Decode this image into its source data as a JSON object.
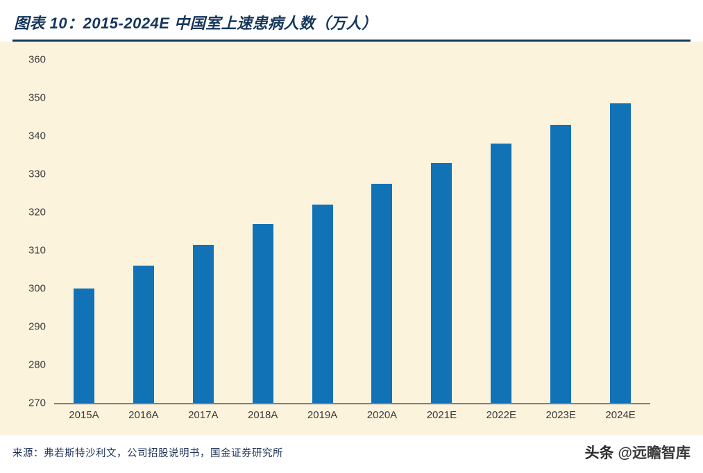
{
  "header": {
    "title": "图表 10：2015-2024E 中国室上速患病人数（万人）"
  },
  "chart_data": {
    "type": "bar",
    "title": "图表 10：2015-2024E 中国室上速患病人数（万人）",
    "categories": [
      "2015A",
      "2016A",
      "2017A",
      "2018A",
      "2019A",
      "2020A",
      "2021E",
      "2022E",
      "2023E",
      "2024E"
    ],
    "values": [
      300,
      306,
      311.5,
      317,
      322,
      327.5,
      333,
      338,
      343,
      348.5
    ],
    "xlabel": "",
    "ylabel": "",
    "ylim": [
      270,
      360
    ],
    "yticks": [
      270,
      280,
      290,
      300,
      310,
      320,
      330,
      340,
      350,
      360
    ],
    "grid": false,
    "legend": "none",
    "bar_color": "#1272b6",
    "panel_background": "#fcf3dd",
    "accent_color": "#16365c",
    "axis_line_color": "#7f7f7f"
  },
  "footer": {
    "source": "来源：弗若斯特沙利文，公司招股说明书，国金证券研究所",
    "watermark_brand": "头条",
    "watermark_handle": "@远瞻智库"
  }
}
